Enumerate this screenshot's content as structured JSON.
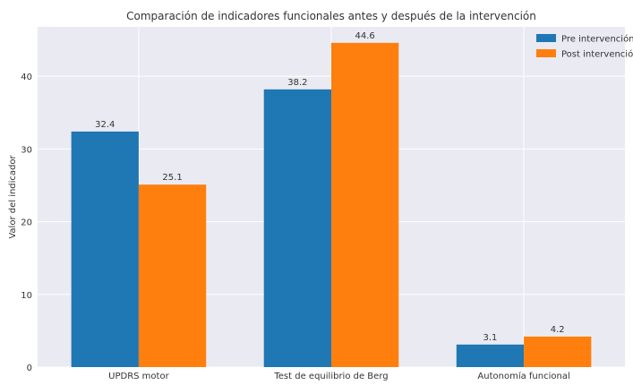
{
  "chart_data": {
    "type": "bar",
    "title": "Comparación de indicadores funcionales antes y después de la intervención",
    "xlabel": "",
    "ylabel": "Valor del indicador",
    "categories": [
      "UPDRS motor",
      "Test de equilibrio de Berg",
      "Autonomía funcional"
    ],
    "series": [
      {
        "name": "Pre intervención",
        "values": [
          32.4,
          38.2,
          3.1
        ],
        "color": "#1f77b4"
      },
      {
        "name": "Post intervención",
        "values": [
          25.1,
          44.6,
          4.2
        ],
        "color": "#ff7f0e"
      }
    ],
    "ylim": [
      0,
      46.8
    ],
    "yticks": [
      0,
      10,
      20,
      30,
      40
    ],
    "grid": true,
    "legend_position": "top-right",
    "plot_background": "#eaeaf2"
  }
}
